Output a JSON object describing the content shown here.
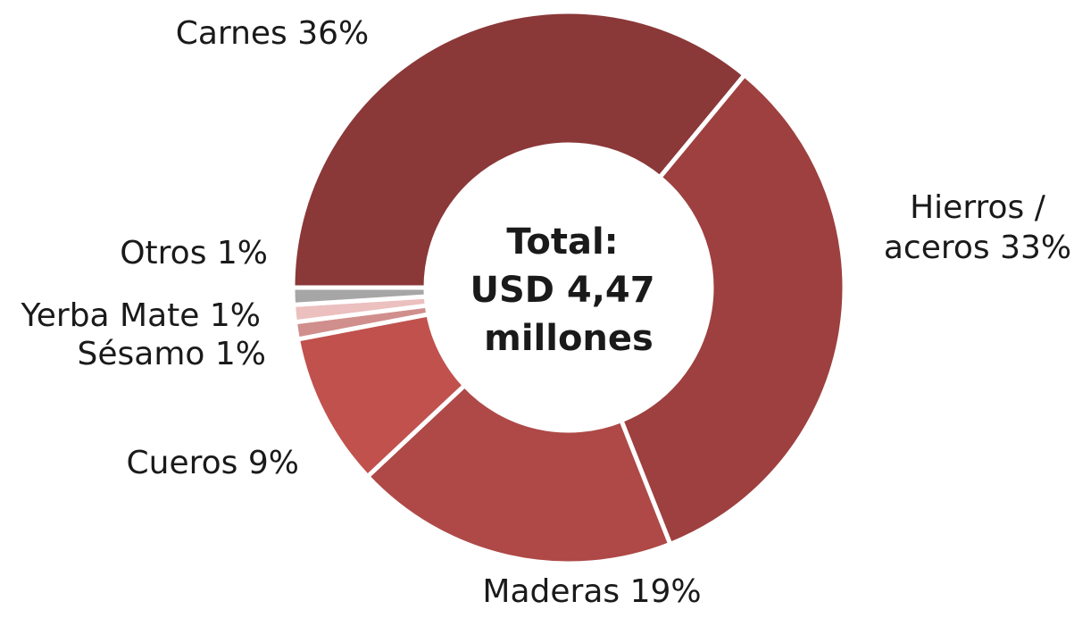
{
  "chart_data": {
    "type": "pie",
    "donut": true,
    "categories": [
      "Carnes",
      "Hierros / aceros",
      "Maderas",
      "Cueros",
      "Sésamo",
      "Yerba Mate",
      "Otros"
    ],
    "values": [
      36,
      33,
      19,
      9,
      1,
      1,
      1
    ],
    "colors": [
      "#8b3838",
      "#9d403f",
      "#ae4947",
      "#c0514d",
      "#d08f8c",
      "#ebc0bf",
      "#a6a6a6"
    ],
    "labels": [
      {
        "lines": [
          "Carnes 36%"
        ]
      },
      {
        "lines": [
          "Hierros /",
          "aceros 33%"
        ]
      },
      {
        "lines": [
          "Maderas 19%"
        ]
      },
      {
        "lines": [
          "Cueros 9%"
        ]
      },
      {
        "lines": [
          "Sésamo 1%"
        ]
      },
      {
        "lines": [
          "Yerba Mate 1%"
        ]
      },
      {
        "lines": [
          "Otros 1%"
        ]
      }
    ],
    "center_text": [
      "Total:",
      "USD 4,47",
      "millones"
    ],
    "legend": "none"
  }
}
